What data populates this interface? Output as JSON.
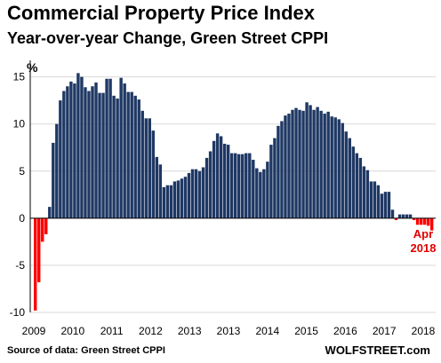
{
  "chart_data": {
    "type": "bar",
    "title": "Commercial Property Price Index",
    "subtitle": "Year-over-year Change, Green Street CPPI",
    "ylabel": "%",
    "ylim": [
      -10,
      16
    ],
    "yticks": [
      -10,
      -5,
      0,
      5,
      10,
      15
    ],
    "xtick_labels": [
      "2009",
      "2010",
      "2011",
      "2012",
      "2013",
      "2013",
      "2014",
      "2015",
      "2016",
      "2017",
      "2018"
    ],
    "positive_color": "#1f3864",
    "negative_color": "#ff0000",
    "grid": true,
    "x": [
      "2009-01",
      "2009-02",
      "2009-03",
      "2009-04",
      "2009-05",
      "2009-06",
      "2009-07",
      "2009-08",
      "2009-09",
      "2009-10",
      "2009-11",
      "2009-12",
      "2010-01",
      "2010-02",
      "2010-03",
      "2010-04",
      "2010-05",
      "2010-06",
      "2010-07",
      "2010-08",
      "2010-09",
      "2010-10",
      "2010-11",
      "2010-12",
      "2011-01",
      "2011-02",
      "2011-03",
      "2011-04",
      "2011-05",
      "2011-06",
      "2011-07",
      "2011-08",
      "2011-09",
      "2011-10",
      "2011-11",
      "2011-12",
      "2012-01",
      "2012-02",
      "2012-03",
      "2012-04",
      "2012-05",
      "2012-06",
      "2012-07",
      "2012-08",
      "2012-09",
      "2012-10",
      "2012-11",
      "2012-12",
      "2013-01",
      "2013-02",
      "2013-03",
      "2013-04",
      "2013-05",
      "2013-06",
      "2013-07",
      "2013-08",
      "2013-09",
      "2013-10",
      "2013-11",
      "2013-12",
      "2014-01",
      "2014-02",
      "2014-03",
      "2014-04",
      "2014-05",
      "2014-06",
      "2014-07",
      "2014-08",
      "2014-09",
      "2014-10",
      "2014-11",
      "2014-12",
      "2015-01",
      "2015-02",
      "2015-03",
      "2015-04",
      "2015-05",
      "2015-06",
      "2015-07",
      "2015-08",
      "2015-09",
      "2015-10",
      "2015-11",
      "2015-12",
      "2016-01",
      "2016-02",
      "2016-03",
      "2016-04",
      "2016-05",
      "2016-06",
      "2016-07",
      "2016-08",
      "2016-09",
      "2016-10",
      "2016-11",
      "2016-12",
      "2017-01",
      "2017-02",
      "2017-03",
      "2017-04",
      "2017-05",
      "2017-06",
      "2017-07",
      "2017-08",
      "2017-09",
      "2017-10",
      "2017-11",
      "2017-12",
      "2018-01",
      "2018-02",
      "2018-03",
      "2018-04"
    ],
    "values": [
      -9.8,
      -6.8,
      -2.5,
      -1.7,
      1.2,
      8,
      10,
      12.5,
      13.5,
      14,
      14.5,
      14.3,
      15.4,
      15,
      13.9,
      13.5,
      14,
      14.4,
      13.3,
      13.3,
      14.8,
      14.8,
      13,
      12.7,
      14.9,
      14.3,
      13.4,
      13.4,
      13,
      12.6,
      11.4,
      10.6,
      10.6,
      9.3,
      6.5,
      5.7,
      3.3,
      3.5,
      3.5,
      3.9,
      4,
      4.2,
      4.4,
      4.8,
      5.2,
      5.2,
      5,
      5.4,
      6.4,
      7.1,
      8.2,
      9,
      8.7,
      7.9,
      7.8,
      6.9,
      6.9,
      6.8,
      6.8,
      6.9,
      6.9,
      6.2,
      5.3,
      4.9,
      5.2,
      6,
      7.8,
      8.5,
      9.8,
      10.3,
      10.9,
      11.1,
      11.5,
      11.7,
      11.5,
      11.4,
      12.3,
      12,
      11.5,
      11.8,
      11.4,
      11.1,
      11.3,
      10.8,
      10.7,
      10.5,
      10.1,
      9.2,
      8.5,
      7.6,
      6.9,
      6.4,
      5.5,
      5.1,
      3.9,
      3.9,
      3.5,
      2.6,
      2.8,
      2.8,
      0.9,
      -0.2,
      0.4,
      0.4,
      0.4,
      0.4,
      -0.2,
      -0.7,
      -0.7,
      -0.7,
      -0.8,
      -1.3
    ],
    "annotation": "Apr\n2018",
    "source": "Source of data: Green Street CPPI",
    "brand": "WOLFSTREET.com"
  }
}
